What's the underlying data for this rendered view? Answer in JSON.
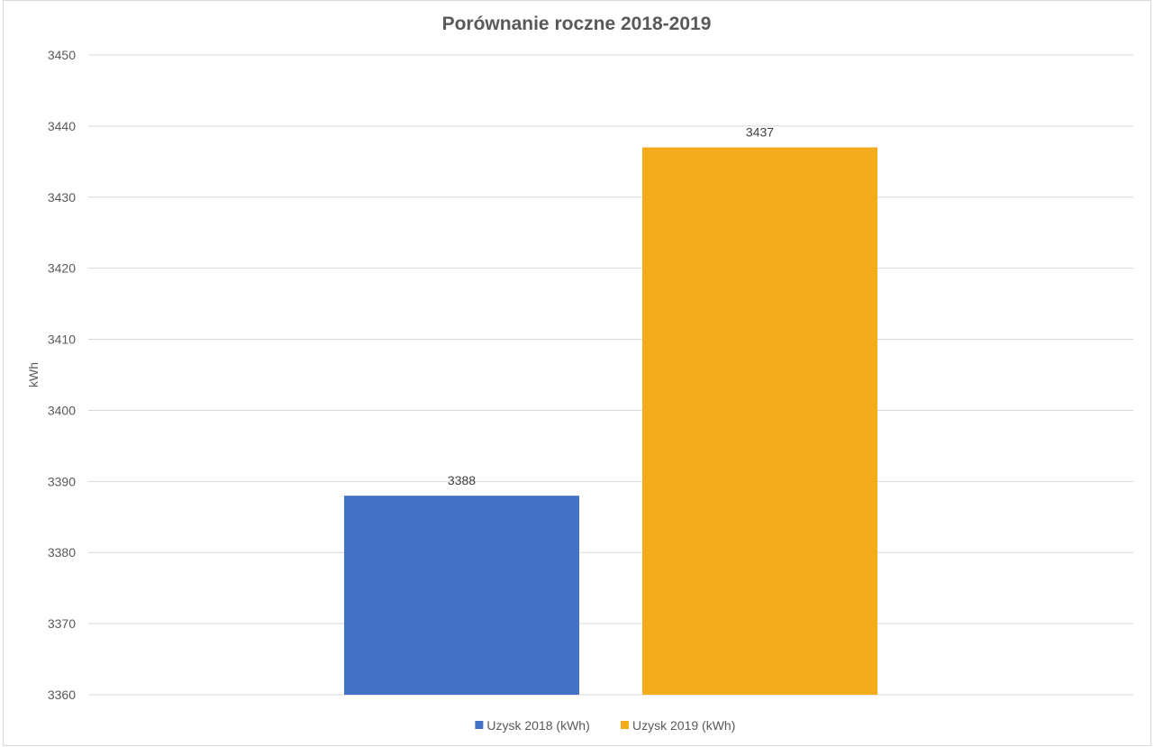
{
  "chart_data": {
    "type": "bar",
    "title": "Porównanie roczne 2018-2019",
    "ylabel": "kWh",
    "xlabel": "",
    "ylim": [
      3360,
      3450
    ],
    "yticks": [
      3360,
      3370,
      3380,
      3390,
      3400,
      3410,
      3420,
      3430,
      3440,
      3450
    ],
    "grid": true,
    "legend_position": "bottom",
    "series": [
      {
        "name": "Uzysk 2018 (kWh)",
        "values": [
          3388
        ],
        "color": "#4472c4"
      },
      {
        "name": "Uzysk 2019 (kWh)",
        "values": [
          3437
        ],
        "color": "#f4ac1c"
      }
    ]
  }
}
